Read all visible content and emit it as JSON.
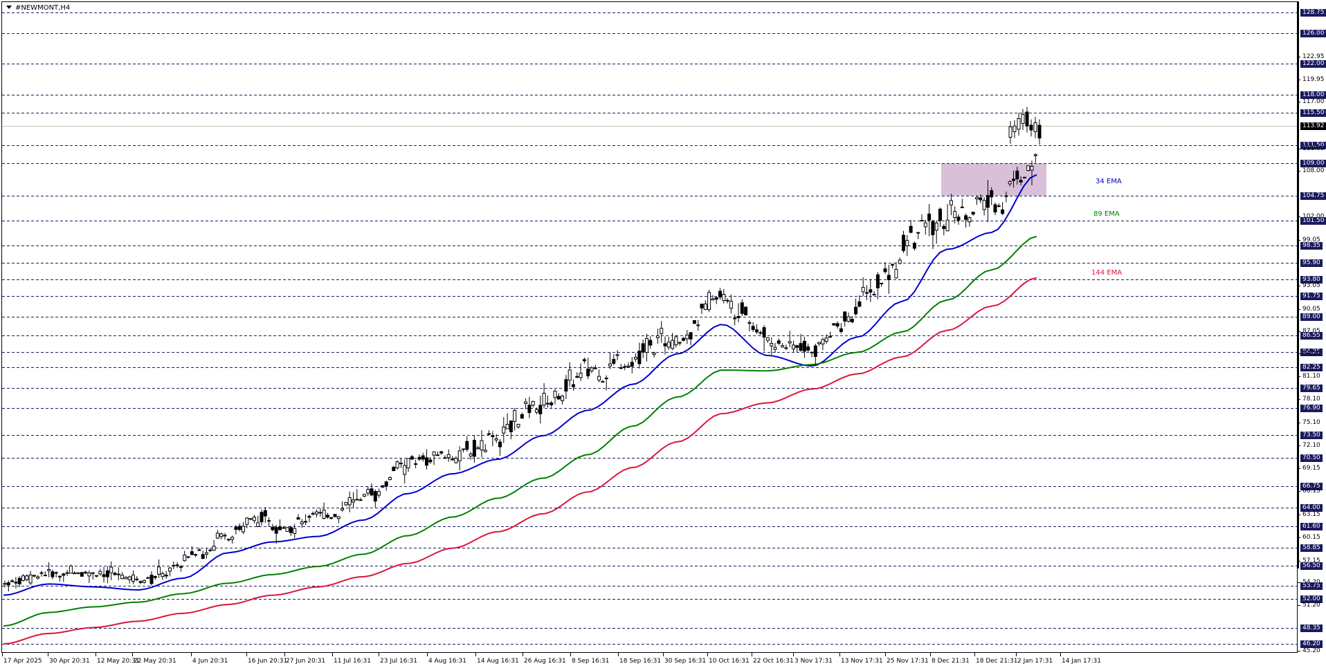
{
  "window": {
    "title": "#NEWMONT,H4"
  },
  "chart_data": {
    "type": "candlestick",
    "title": "#NEWMONT,H4",
    "symbol": "#NEWMONT",
    "timeframe": "H4",
    "current_price": 113.92,
    "y_axis": {
      "scale": "price",
      "ylim": [
        45.2,
        128.75
      ],
      "tick_labels": [
        "122.95",
        "119.95",
        "117.00",
        "111.00",
        "108.00",
        "102.00",
        "99.05",
        "93.05",
        "90.05",
        "87.05",
        "84.10",
        "81.10",
        "78.10",
        "75.10",
        "72.10",
        "69.15",
        "66.15",
        "63.15",
        "60.15",
        "57.15",
        "54.20",
        "51.20",
        "45.20"
      ]
    },
    "x_axis": {
      "tick_labels": [
        "17 Apr 2025",
        "30 Apr 20:31",
        "12 May 20:31",
        "22 May 20:31",
        "4 Jun 20:31",
        "16 Jun 20:31",
        "27 Jun 20:31",
        "11 Jul 16:31",
        "23 Jul 16:31",
        "4 Aug 16:31",
        "14 Aug 16:31",
        "26 Aug 16:31",
        "8 Sep 16:31",
        "18 Sep 16:31",
        "30 Sep 16:31",
        "10 Oct 16:31",
        "22 Oct 16:31",
        "3 Nov 17:31",
        "13 Nov 17:31",
        "25 Nov 17:31",
        "8 Dec 21:31",
        "18 Dec 21:31",
        "2 Jan 17:31",
        "14 Jan 17:31"
      ]
    },
    "horizontal_levels": [
      128.75,
      126.0,
      122.0,
      118.0,
      115.5,
      111.5,
      109.0,
      104.75,
      101.5,
      98.35,
      95.9,
      93.8,
      91.75,
      89.0,
      86.55,
      84.25,
      82.25,
      79.65,
      76.9,
      73.5,
      70.5,
      66.75,
      64.0,
      61.6,
      58.85,
      56.5,
      53.75,
      52.0,
      48.35,
      46.2
    ],
    "zone": {
      "label": "",
      "from": 104.75,
      "to": 109.0,
      "color": "#d8c0d8"
    },
    "series": [
      {
        "name": "34 EMA",
        "color": "#0000cc",
        "values_approx": [
          52.5,
          54.0,
          53.6,
          53.2,
          54.8,
          58.2,
          59.6,
          60.3,
          62.4,
          65.8,
          68.4,
          70.3,
          73.4,
          76.6,
          80.1,
          84.0,
          88.0,
          83.8,
          82.4,
          86.3,
          91.0,
          97.8,
          100.0,
          107.5
        ]
      },
      {
        "name": "89 EMA",
        "color": "#008000",
        "values_approx": [
          48.6,
          50.3,
          51.0,
          51.6,
          52.7,
          54.1,
          55.3,
          56.4,
          58.0,
          60.4,
          62.8,
          65.2,
          67.8,
          70.9,
          74.6,
          78.4,
          81.9,
          81.8,
          82.6,
          84.2,
          87.0,
          91.2,
          95.0,
          99.5
        ]
      },
      {
        "name": "144 EMA",
        "color": "#dc143c",
        "values_approx": [
          46.2,
          47.6,
          48.4,
          49.2,
          50.2,
          51.3,
          52.5,
          53.6,
          55.0,
          56.8,
          58.8,
          60.9,
          63.2,
          66.0,
          69.2,
          72.6,
          76.2,
          77.6,
          79.5,
          81.4,
          83.6,
          87.2,
          90.4,
          94.0
        ]
      }
    ],
    "legend_position": "right-annotations"
  },
  "labels": {
    "ema34": "34 EMA",
    "ema89": "89 EMA",
    "ema144": "144 EMA"
  },
  "colors": {
    "level_line": "#1a1a5e",
    "level_label_bg": "#1a1a5e",
    "ema34": "#0000cc",
    "ema89": "#008000",
    "ema144": "#dc143c",
    "zone": "#d8c0d8",
    "current_price_line": "#c0c0c0"
  }
}
